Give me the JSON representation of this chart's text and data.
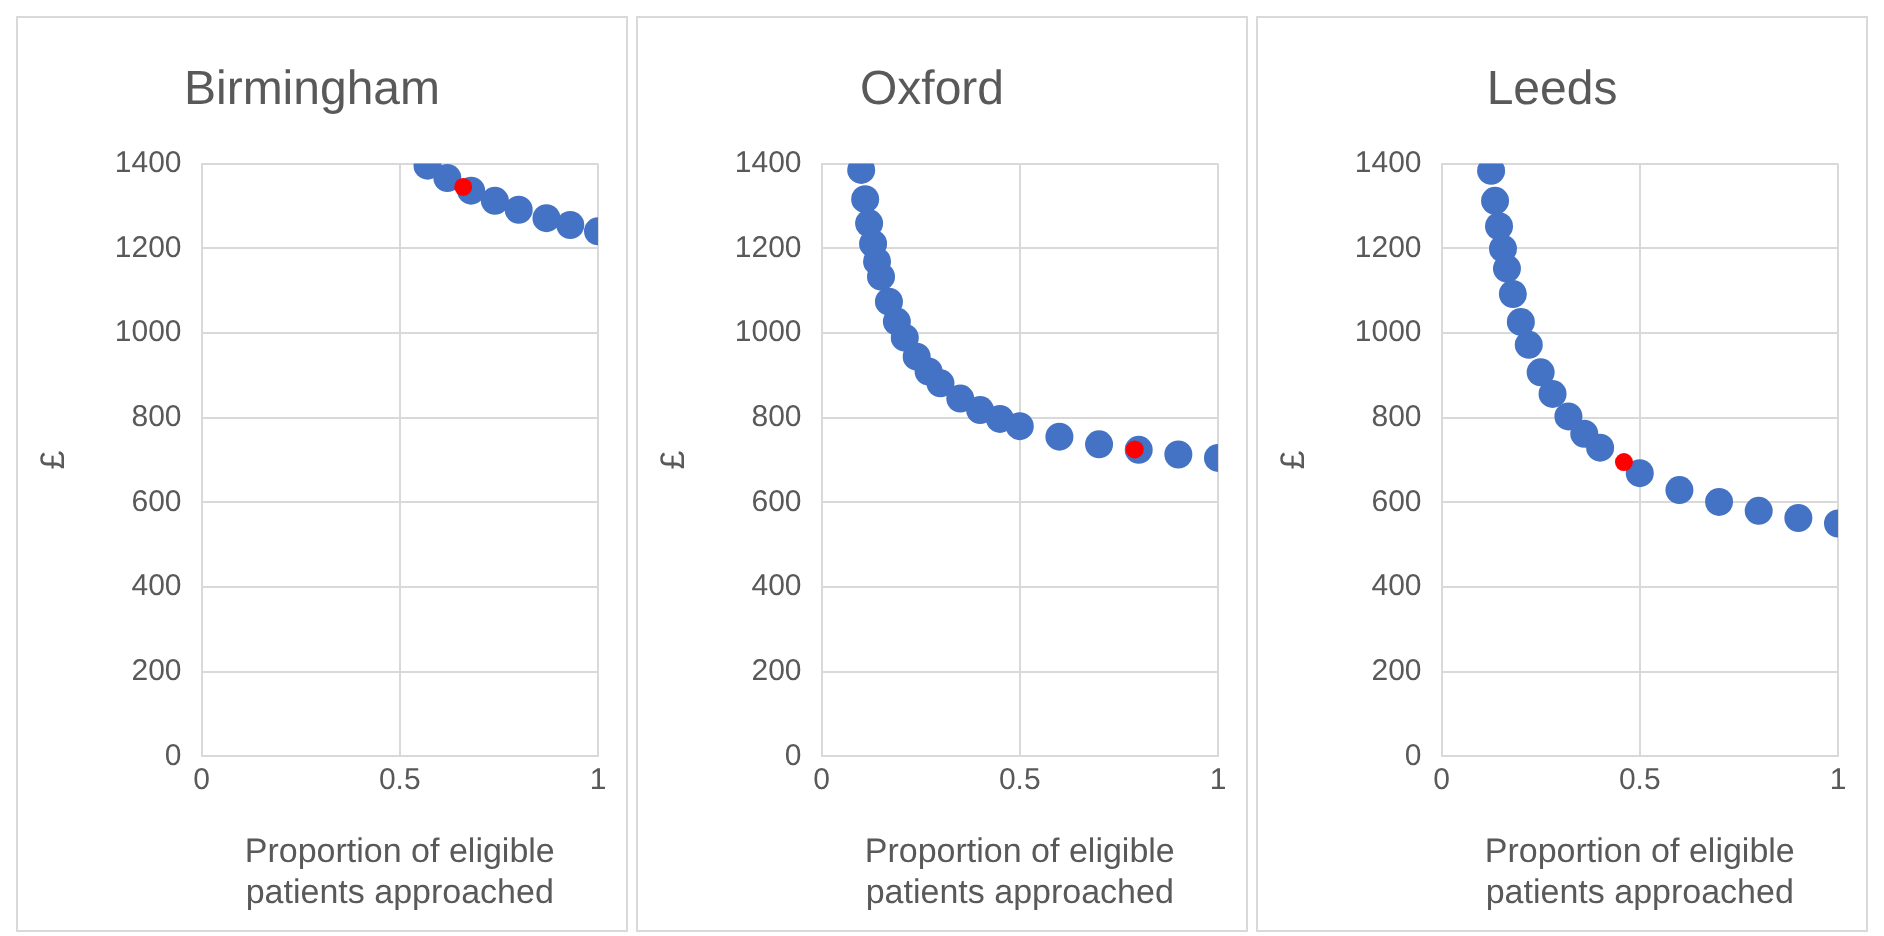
{
  "chart_data": [
    {
      "type": "scatter",
      "title": "Birmingham",
      "xlabel": "Proportion of eligible patients approached",
      "ylabel": "£",
      "xlim": [
        0,
        1
      ],
      "xticks": [
        0,
        0.5,
        1
      ],
      "ylim": [
        0,
        1400
      ],
      "yticks": [
        0,
        200,
        400,
        600,
        800,
        1000,
        1200,
        1400
      ],
      "grid": true,
      "legend": false,
      "marker": "circle",
      "series": [
        {
          "color": "#4472c4",
          "x": [
            0.57,
            0.62,
            0.68,
            0.74,
            0.8,
            0.87,
            0.93,
            1.0
          ],
          "values": [
            1395,
            1366,
            1336,
            1312,
            1291,
            1271,
            1255,
            1240
          ]
        },
        {
          "color": "#ff0000",
          "x": [
            0.66
          ],
          "values": [
            1345
          ]
        }
      ]
    },
    {
      "type": "scatter",
      "title": "Oxford",
      "xlabel": "Proportion of eligible patients approached",
      "ylabel": "£",
      "xlim": [
        0,
        1
      ],
      "xticks": [
        0,
        0.5,
        1
      ],
      "ylim": [
        0,
        1400
      ],
      "yticks": [
        0,
        200,
        400,
        600,
        800,
        1000,
        1200,
        1400
      ],
      "grid": true,
      "legend": false,
      "marker": "circle",
      "series": [
        {
          "color": "#4472c4",
          "x": [
            0.1,
            0.11,
            0.12,
            0.13,
            0.14,
            0.15,
            0.17,
            0.19,
            0.21,
            0.24,
            0.27,
            0.3,
            0.35,
            0.4,
            0.45,
            0.5,
            0.6,
            0.7,
            0.8,
            0.9,
            1.0
          ],
          "values": [
            1385,
            1316,
            1259,
            1211,
            1169,
            1133,
            1074,
            1027,
            989,
            944,
            909,
            881,
            845,
            818,
            797,
            780,
            755,
            737,
            724,
            713,
            705
          ]
        },
        {
          "color": "#ff0000",
          "x": [
            0.79
          ],
          "values": [
            725
          ]
        }
      ]
    },
    {
      "type": "scatter",
      "title": "Leeds",
      "xlabel": "Proportion of eligible patients approached",
      "ylabel": "£",
      "xlim": [
        0,
        1
      ],
      "xticks": [
        0,
        0.5,
        1
      ],
      "ylim": [
        0,
        1400
      ],
      "yticks": [
        0,
        200,
        400,
        600,
        800,
        1000,
        1200,
        1400
      ],
      "grid": true,
      "legend": false,
      "marker": "circle",
      "series": [
        {
          "color": "#4472c4",
          "x": [
            0.125,
            0.135,
            0.145,
            0.155,
            0.165,
            0.18,
            0.2,
            0.22,
            0.25,
            0.28,
            0.32,
            0.36,
            0.4,
            0.5,
            0.6,
            0.7,
            0.8,
            0.9,
            1.0
          ],
          "values": [
            1383,
            1312,
            1252,
            1199,
            1152,
            1092,
            1026,
            972,
            907,
            856,
            803,
            762,
            729,
            669,
            629,
            601,
            580,
            563,
            550
          ]
        },
        {
          "color": "#ff0000",
          "x": [
            0.46
          ],
          "values": [
            695
          ]
        }
      ]
    }
  ]
}
